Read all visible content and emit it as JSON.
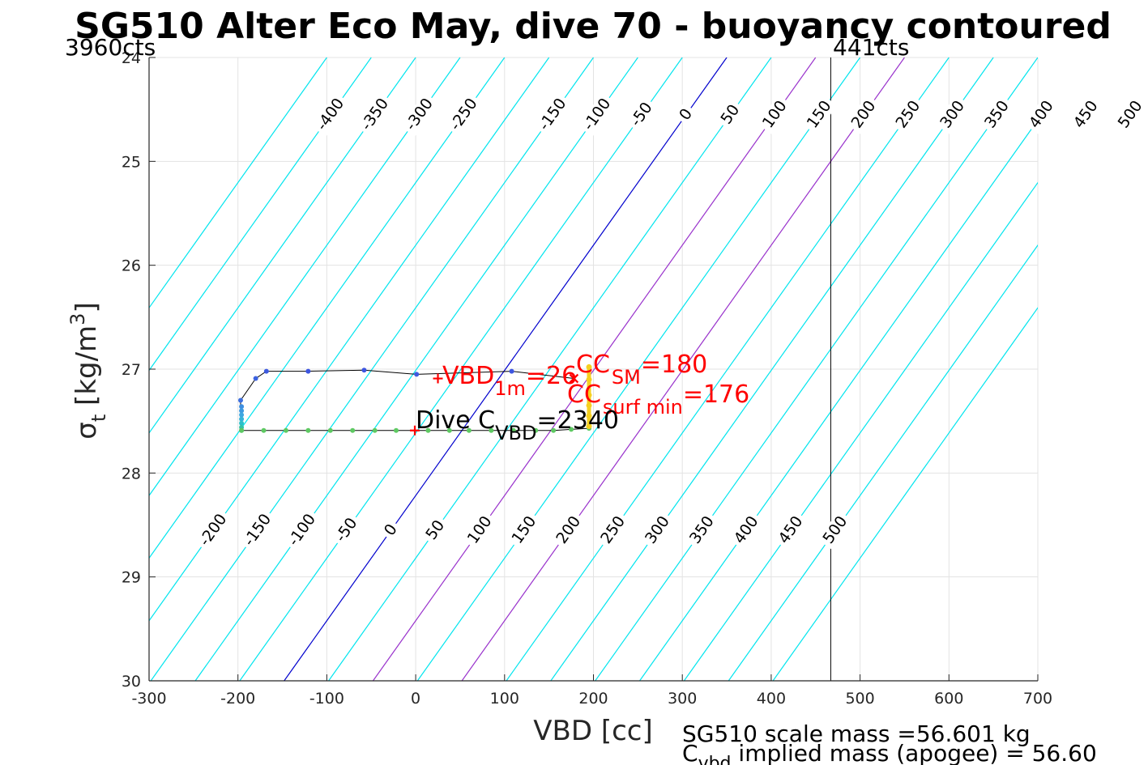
{
  "chart_data": {
    "type": "line",
    "title": "SG510 Alter Eco May, dive 70 - buoyancy contoured",
    "xlabel": "VBD [cc]",
    "ylabel_symbol": "σ",
    "ylabel_sub": "t",
    "ylabel_unit": "[kg/m",
    "ylabel_sup": "3",
    "ylabel_close": "]",
    "xlim": [
      -300,
      700
    ],
    "ylim": [
      24,
      30
    ],
    "y_reversed": true,
    "grid": true,
    "xticks": [
      -300,
      -200,
      -100,
      0,
      100,
      200,
      300,
      400,
      500,
      600,
      700
    ],
    "yticks": [
      24,
      25,
      26,
      27,
      28,
      29,
      30
    ],
    "counts_left": "3960cts",
    "counts_right": "441cts",
    "counts_right_vbd": 467,
    "buoyancy_contours_upper": [
      -400,
      -350,
      -300,
      -250,
      -150,
      -100,
      -50,
      0,
      50,
      100,
      150,
      200,
      250,
      300,
      350,
      400,
      450,
      500
    ],
    "buoyancy_contours_lower": [
      -200,
      -150,
      -100,
      -50,
      0,
      50,
      100,
      150,
      200,
      250,
      300,
      350,
      400,
      450,
      500
    ],
    "contour_lines": [
      -450,
      -400,
      -350,
      -300,
      -250,
      -200,
      -150,
      -100,
      -50,
      0,
      50,
      100,
      150,
      200,
      250,
      300,
      350,
      400,
      450,
      500,
      550
    ],
    "contour_colors": {
      "default": "#00e5ee",
      "zero": "#0000cd",
      "highlight": "#9932cc"
    },
    "highlight_contours": [
      100,
      200
    ],
    "zero_contour_at_sigma30": -148,
    "contour_slope_cc_per_sigma": 83,
    "dive_track": [
      {
        "vbd": -197,
        "sigma": 27.58
      },
      {
        "vbd": -197,
        "sigma": 27.45
      },
      {
        "vbd": -197,
        "sigma": 27.3
      },
      {
        "vbd": -180,
        "sigma": 27.09
      },
      {
        "vbd": -168,
        "sigma": 27.02
      },
      {
        "vbd": -121,
        "sigma": 27.02
      },
      {
        "vbd": -58,
        "sigma": 27.01
      },
      {
        "vbd": 1,
        "sigma": 27.05
      },
      {
        "vbd": 108,
        "sigma": 27.02
      },
      {
        "vbd": 178,
        "sigma": 27.09
      }
    ],
    "dive_points": [
      {
        "vbd": -197,
        "sigma": 27.3,
        "color": "#3d6fe0"
      },
      {
        "vbd": -196,
        "sigma": 27.36,
        "color": "#3d8ee0"
      },
      {
        "vbd": -196,
        "sigma": 27.4,
        "color": "#3d9ae0"
      },
      {
        "vbd": -196,
        "sigma": 27.44,
        "color": "#3da7e0"
      },
      {
        "vbd": -196,
        "sigma": 27.48,
        "color": "#35b3d9"
      },
      {
        "vbd": -196,
        "sigma": 27.52,
        "color": "#2ebfc9"
      },
      {
        "vbd": -196,
        "sigma": 27.56,
        "color": "#33c2a8"
      },
      {
        "vbd": -196,
        "sigma": 27.59,
        "color": "#3cc08e"
      },
      {
        "vbd": -180,
        "sigma": 27.09,
        "color": "#3d63e0"
      },
      {
        "vbd": -168,
        "sigma": 27.02,
        "color": "#3d5ae0"
      },
      {
        "vbd": -121,
        "sigma": 27.02,
        "color": "#3d55e0"
      },
      {
        "vbd": -58,
        "sigma": 27.01,
        "color": "#3d55e0"
      },
      {
        "vbd": 1,
        "sigma": 27.05,
        "color": "#3d5ae0"
      },
      {
        "vbd": 108,
        "sigma": 27.02,
        "color": "#3d55e0"
      }
    ],
    "climb_track": [
      {
        "vbd": -196,
        "sigma": 27.59
      },
      {
        "vbd": -171,
        "sigma": 27.59
      },
      {
        "vbd": -146,
        "sigma": 27.59
      },
      {
        "vbd": -121,
        "sigma": 27.59
      },
      {
        "vbd": -96,
        "sigma": 27.59
      },
      {
        "vbd": -71,
        "sigma": 27.59
      },
      {
        "vbd": -46,
        "sigma": 27.59
      },
      {
        "vbd": -22,
        "sigma": 27.59
      },
      {
        "vbd": 14,
        "sigma": 27.59
      },
      {
        "vbd": 38,
        "sigma": 27.59
      },
      {
        "vbd": 60,
        "sigma": 27.59
      },
      {
        "vbd": 85,
        "sigma": 27.59
      },
      {
        "vbd": 110,
        "sigma": 27.59
      },
      {
        "vbd": 135,
        "sigma": 27.59
      },
      {
        "vbd": 155,
        "sigma": 27.59
      },
      {
        "vbd": 175,
        "sigma": 27.58
      },
      {
        "vbd": 195,
        "sigma": 27.57
      }
    ],
    "climb_color": "#5ec962",
    "surface_points": [
      {
        "vbd": 195,
        "sigma": 27.55
      },
      {
        "vbd": 195,
        "sigma": 27.45
      },
      {
        "vbd": 195,
        "sigma": 27.35
      },
      {
        "vbd": 195,
        "sigma": 27.25
      },
      {
        "vbd": 195,
        "sigma": 27.1
      },
      {
        "vbd": 195,
        "sigma": 26.98
      }
    ],
    "surface_color": "#f5d020",
    "markers": {
      "vbd_1m": {
        "vbd": 25,
        "sigma": 27.09,
        "symbol": "+"
      },
      "dive_c_vbd": {
        "vbd": -1,
        "sigma": 27.59,
        "symbol": "+"
      },
      "cc_sm": {
        "vbd": 178,
        "sigma": 27.09,
        "symbol": "x"
      }
    },
    "annotations": {
      "vbd1m_main": "VBD",
      "vbd1m_sub": "1m",
      "vbd1m_val": "=26",
      "ccsm_main": "CC",
      "ccsm_sub": "SM",
      "ccsm_val": "=180",
      "ccsurf_main": "CC",
      "ccsurf_sub": "surf min",
      "ccsurf_val": "=176",
      "divec_main": "Dive C",
      "divec_sub": "VBD",
      "divec_val": "=2340"
    },
    "footer": {
      "line1": "SG510 scale mass =56.601 kg",
      "line2_main": "C",
      "line2_sub": "vbd",
      "line2_rest": " implied mass (apogee) = 56.60"
    }
  }
}
